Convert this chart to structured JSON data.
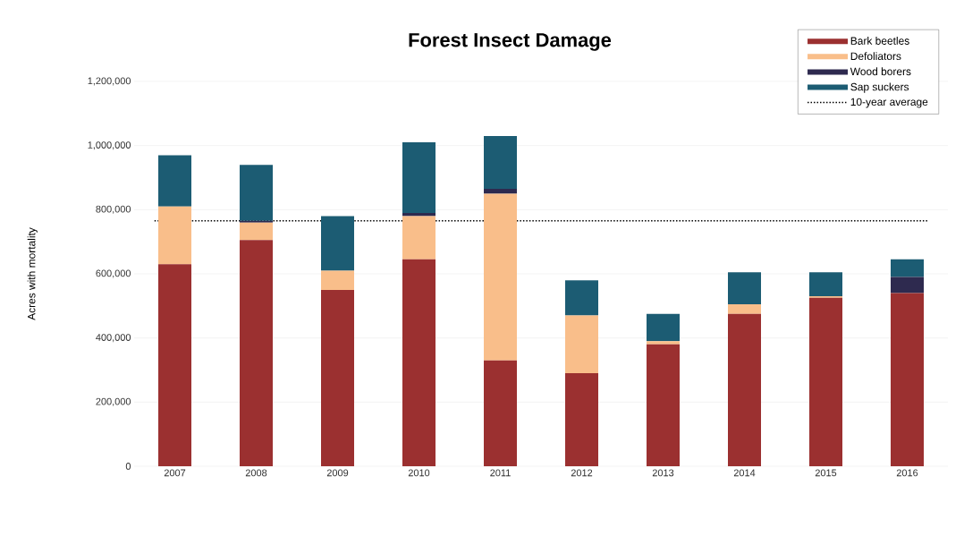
{
  "chart_data": {
    "type": "bar",
    "title": "Forest Insect Damage",
    "ylabel": "Acres with mortality",
    "stacked": true,
    "categories": [
      "2007",
      "2008",
      "2009",
      "2010",
      "2011",
      "2012",
      "2013",
      "2014",
      "2015",
      "2016"
    ],
    "series": [
      {
        "name": "Bark beetles",
        "color": "#9b3030",
        "values": [
          630000,
          705000,
          550000,
          645000,
          330000,
          290000,
          380000,
          475000,
          525000,
          540000
        ]
      },
      {
        "name": "Defoliators",
        "color": "#f9be8a",
        "values": [
          180000,
          55000,
          60000,
          135000,
          520000,
          180000,
          10000,
          30000,
          5000,
          0
        ]
      },
      {
        "name": "Wood borers",
        "color": "#2e2a4f",
        "values": [
          0,
          5000,
          0,
          10000,
          15000,
          0,
          0,
          0,
          0,
          50000
        ]
      },
      {
        "name": "Sap suckers",
        "color": "#1c5c73",
        "values": [
          160000,
          175000,
          170000,
          220000,
          165000,
          110000,
          85000,
          100000,
          75000,
          55000
        ]
      }
    ],
    "ylim": [
      0,
      1200000
    ],
    "yticks": [
      0,
      {
        "value": 200000,
        "label": "200,000"
      },
      {
        "value": 400000,
        "label": "400,000"
      },
      {
        "value": 600000,
        "label": "600,000"
      },
      {
        "value": 800000,
        "label": "800,000"
      },
      {
        "value": 1000000,
        "label": "1,000,000"
      },
      {
        "value": 1200000,
        "label": "1,200,000"
      }
    ],
    "ref_lines": [
      {
        "axis": "y",
        "value": 765000,
        "label": "10-year average",
        "color": "#000000",
        "line_style": "dotted"
      }
    ],
    "grid": "y",
    "legend": "top right"
  }
}
